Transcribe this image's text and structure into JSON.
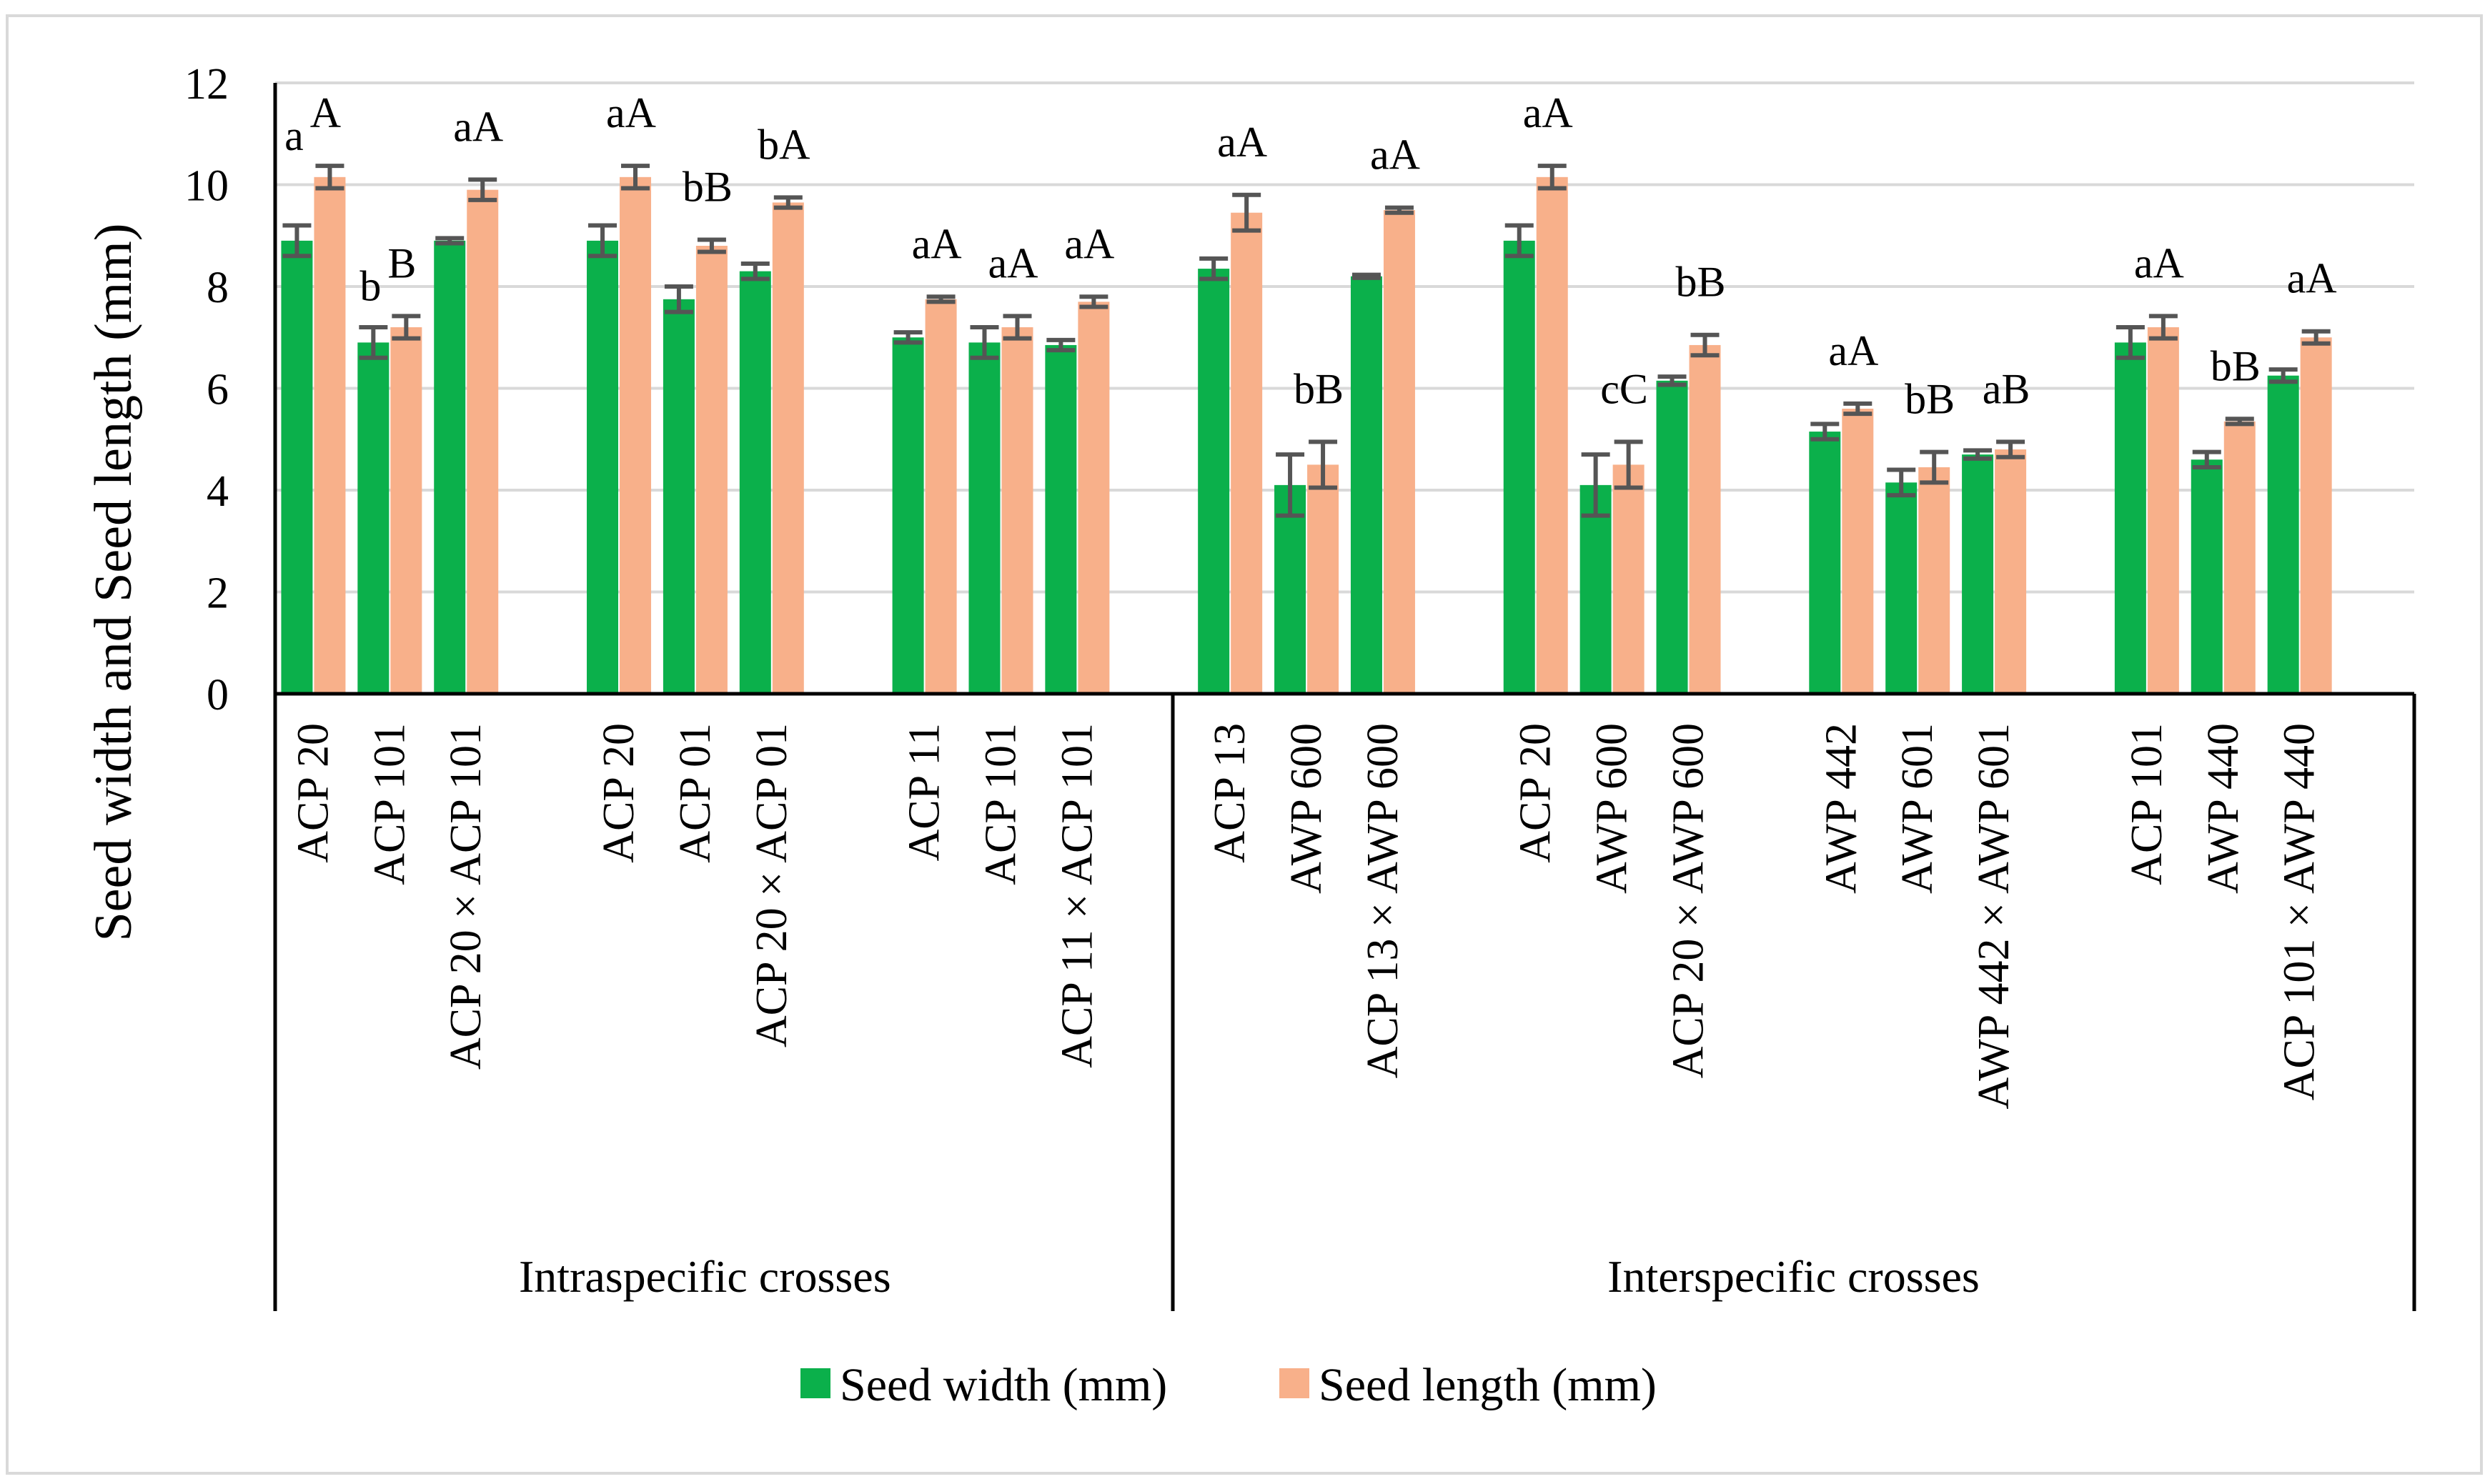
{
  "chart_data": {
    "type": "bar",
    "title": "",
    "ylabel": "Seed width and Seed length (mm)",
    "xlabel": "",
    "ylim": [
      0,
      12
    ],
    "yticks": [
      "0",
      "2",
      "4",
      "6",
      "8",
      "10",
      "12"
    ],
    "grid": true,
    "legend_position": "bottom",
    "colors": {
      "width": "#0BB04B",
      "length": "#F8B08A",
      "error": "#555555",
      "grid": "#D9D9D9"
    },
    "groups": [
      {
        "label": "Intraspecific crosses",
        "start": 0,
        "end": 8
      },
      {
        "label": "Interspecific crosses",
        "start": 9,
        "end": 20
      }
    ],
    "categories": [
      "ACP 20",
      "ACP 101",
      "ACP 20 × ACP 101",
      "ACP 20",
      "ACP 01",
      "ACP 20 × ACP 01",
      "ACP 11",
      "ACP 101",
      "ACP 11 × ACP 101",
      "ACP 13",
      "AWP 600",
      "ACP 13 × AWP 600",
      "ACP 20",
      "AWP 600",
      "ACP 20 × AWP 600",
      "AWP 442",
      "AWP 601",
      "AWP 442 × AWP 601",
      "ACP 101",
      "AWP 440",
      "ACP 101 × AWP 440"
    ],
    "series": [
      {
        "name": "Seed width (mm)",
        "values": [
          8.9,
          6.9,
          8.9,
          8.9,
          7.75,
          8.3,
          7.0,
          6.9,
          6.85,
          8.35,
          4.1,
          8.2,
          8.9,
          4.1,
          6.15,
          5.15,
          4.15,
          4.7,
          6.9,
          4.6,
          6.25
        ],
        "errors": [
          0.3,
          0.3,
          0.05,
          0.3,
          0.25,
          0.15,
          0.1,
          0.3,
          0.1,
          0.2,
          0.6,
          0.03,
          0.3,
          0.6,
          0.08,
          0.15,
          0.25,
          0.08,
          0.3,
          0.15,
          0.12
        ],
        "letters": [
          "a",
          "b",
          "",
          "",
          "",
          "",
          "",
          "",
          "",
          "",
          "",
          "",
          "",
          "",
          "",
          "",
          "",
          "",
          "",
          "",
          ""
        ]
      },
      {
        "name": "Seed length (mm)",
        "values": [
          10.15,
          7.2,
          9.9,
          10.15,
          8.8,
          9.65,
          7.75,
          7.2,
          7.7,
          9.45,
          4.5,
          9.5,
          10.15,
          4.5,
          6.85,
          5.6,
          4.45,
          4.8,
          7.2,
          5.35,
          7.0
        ],
        "errors": [
          0.22,
          0.22,
          0.2,
          0.22,
          0.12,
          0.1,
          0.05,
          0.22,
          0.1,
          0.35,
          0.45,
          0.05,
          0.22,
          0.45,
          0.2,
          0.1,
          0.3,
          0.15,
          0.22,
          0.05,
          0.12
        ],
        "letters": [
          "A",
          "B",
          "aA",
          "aA",
          "bB",
          "bA",
          "aA",
          "aA",
          "aA",
          "aA",
          "bB",
          "aA",
          "aA",
          "cC",
          "bB",
          "aA",
          "bB",
          "aB",
          "aA",
          "bB",
          "aA"
        ]
      }
    ]
  }
}
